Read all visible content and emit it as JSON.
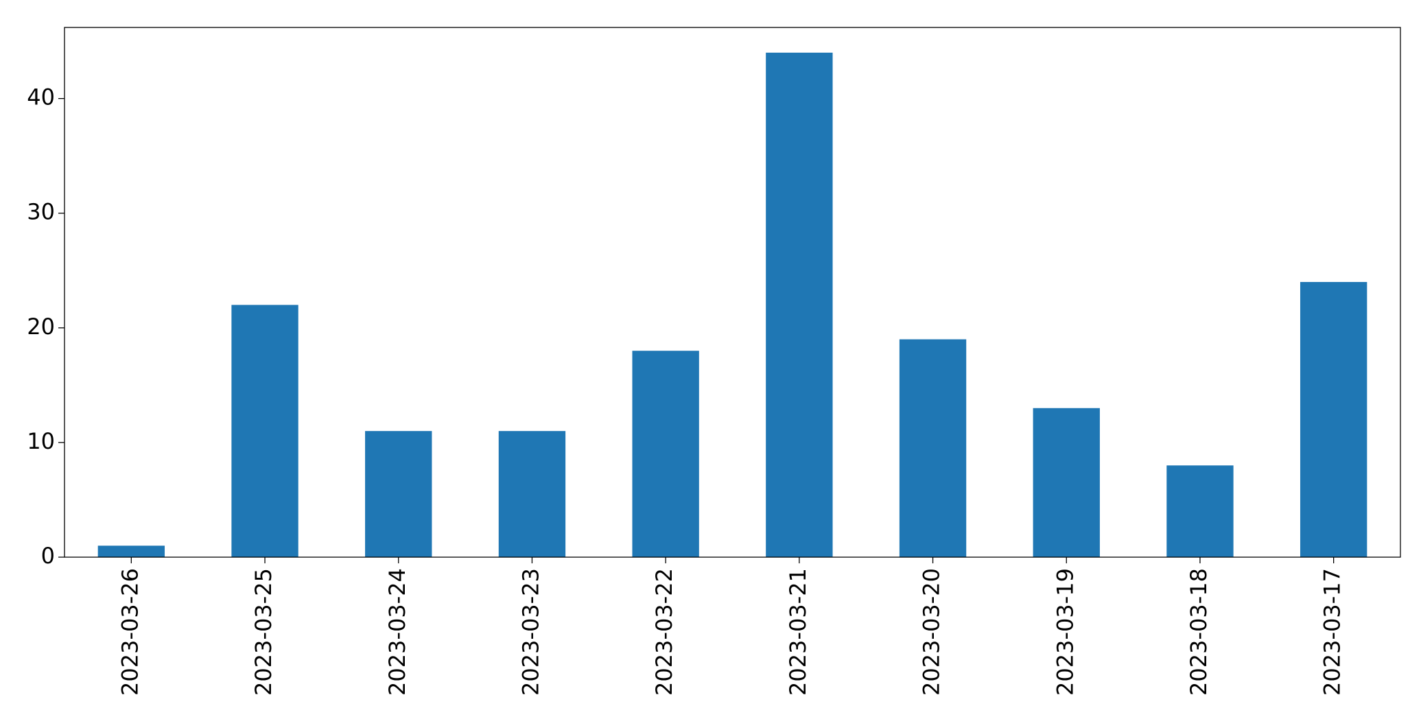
{
  "chart_data": {
    "type": "bar",
    "categories": [
      "2023-03-26",
      "2023-03-25",
      "2023-03-24",
      "2023-03-23",
      "2023-03-22",
      "2023-03-21",
      "2023-03-20",
      "2023-03-19",
      "2023-03-18",
      "2023-03-17"
    ],
    "values": [
      1,
      22,
      11,
      11,
      18,
      44,
      19,
      13,
      8,
      24
    ],
    "color": "#1f77b4",
    "ylim": [
      0,
      46.2
    ],
    "yticks": [
      0,
      10,
      20,
      30,
      40
    ],
    "grid": false
  }
}
